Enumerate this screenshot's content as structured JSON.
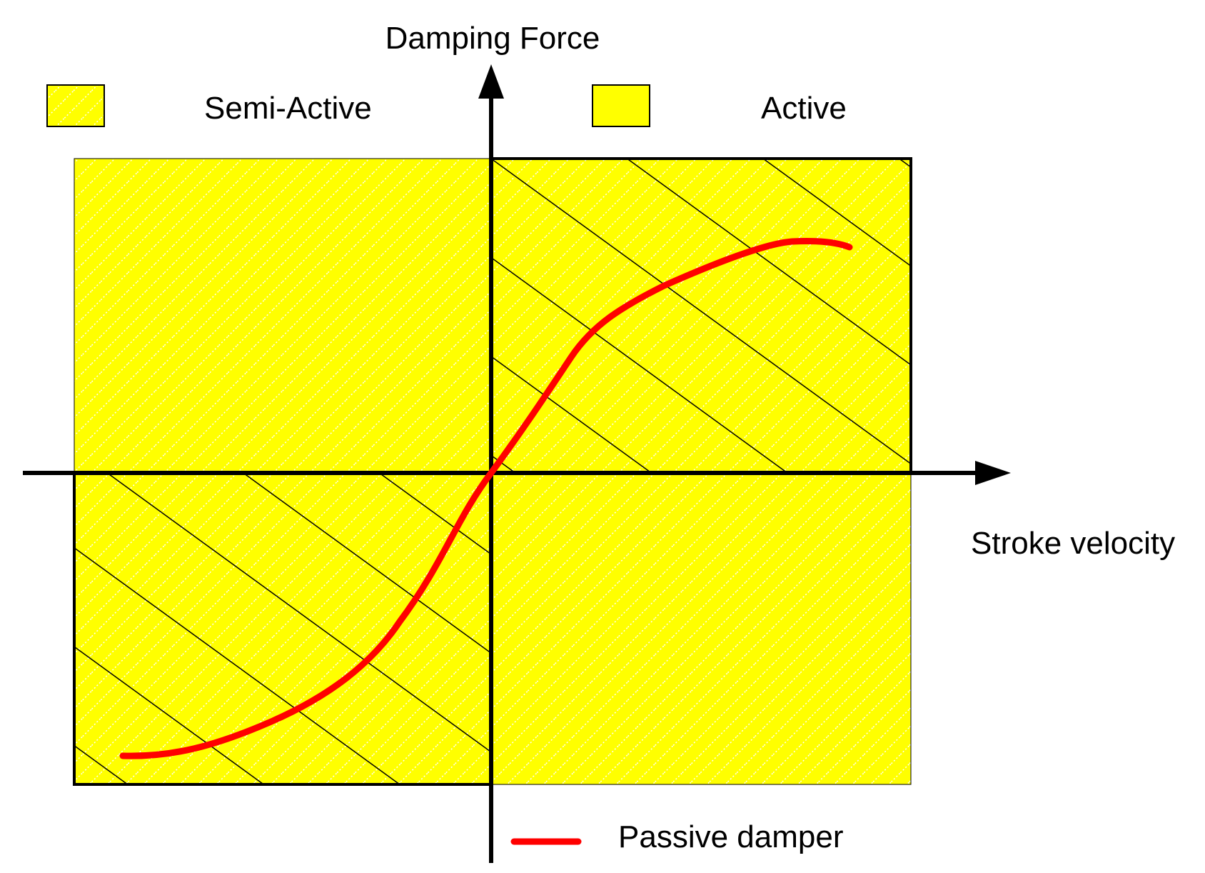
{
  "labels": {
    "y_axis": "Damping Force",
    "x_axis": "Stroke velocity"
  },
  "legend": {
    "semi_active": "Semi-Active",
    "active": "Active",
    "passive": "Passive damper"
  },
  "colors": {
    "region_fill": "#ffff00",
    "dot_hatch": "#ffffff",
    "line_hatch": "#000000",
    "axis": "#000000",
    "passive_curve": "#ff0000"
  }
}
